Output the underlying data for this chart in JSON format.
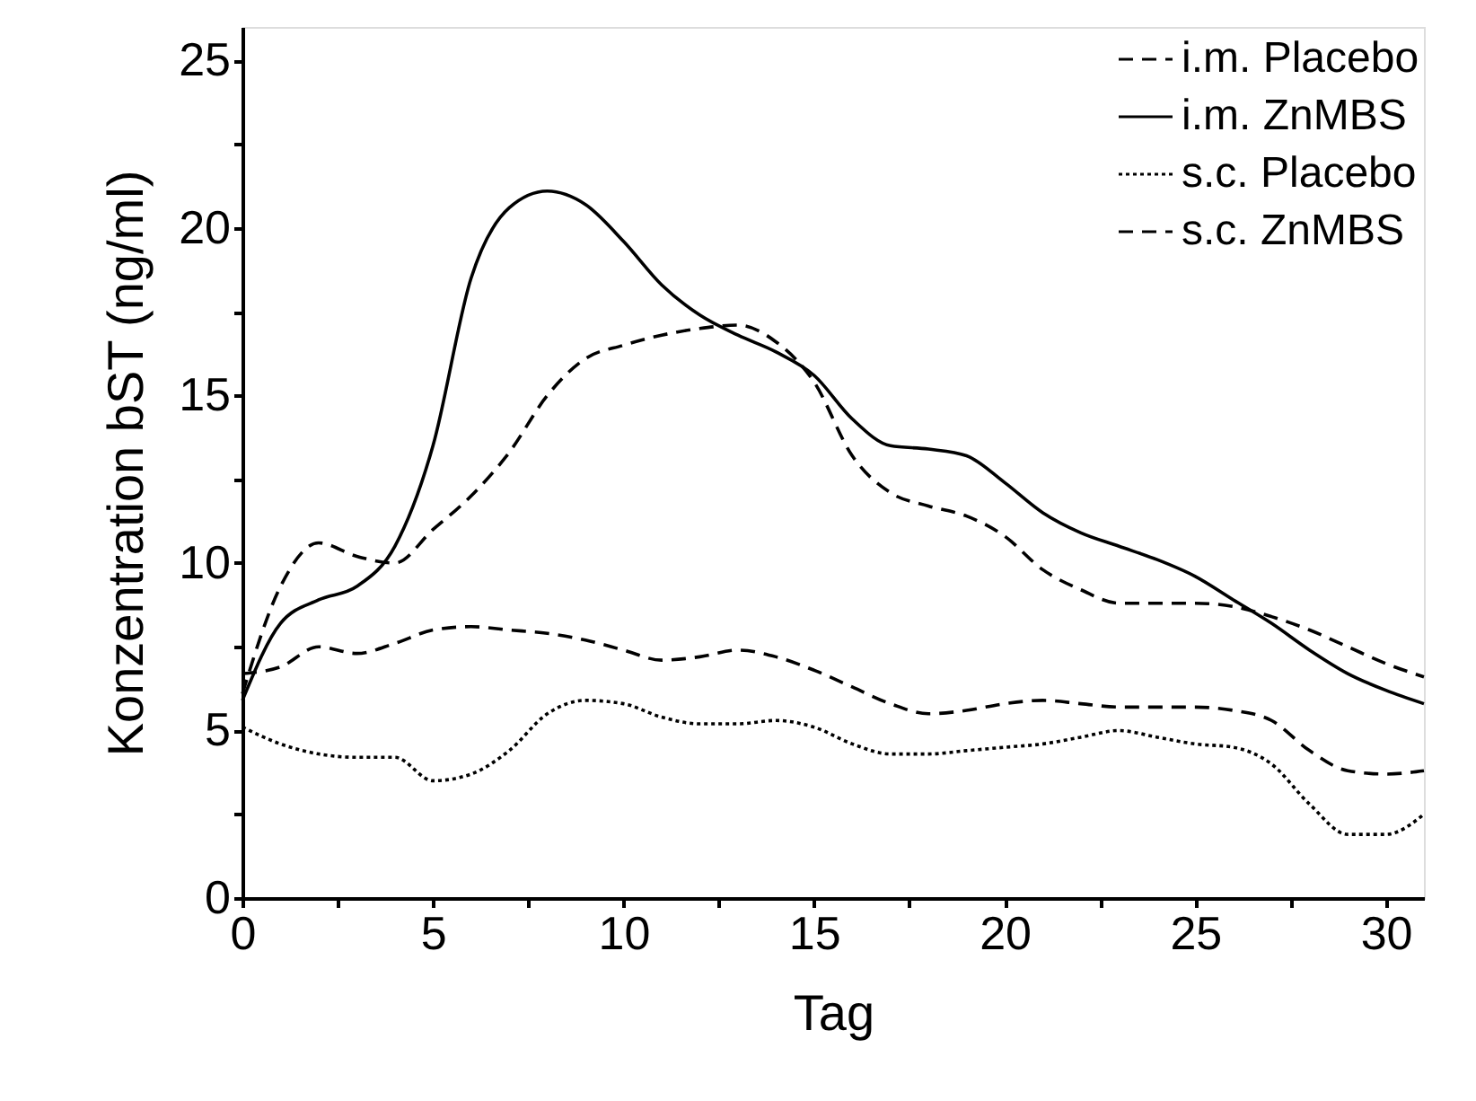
{
  "chart_data": {
    "type": "line",
    "xlabel": "Tag",
    "ylabel": "Konzentration bST (ng/ml)",
    "x": [
      0,
      1,
      2,
      3,
      4,
      5,
      6,
      7,
      8,
      9,
      10,
      11,
      12,
      13,
      14,
      15,
      16,
      17,
      18,
      19,
      20,
      21,
      22,
      23,
      24,
      25,
      26,
      27,
      28,
      29,
      30,
      31
    ],
    "series": [
      {
        "name": "i.m. Placebo",
        "color": "#000000",
        "line_style": "dashed",
        "values": [
          6.7,
          6.9,
          7.5,
          7.3,
          7.6,
          8.0,
          8.1,
          8.0,
          7.9,
          7.7,
          7.4,
          7.1,
          7.2,
          7.4,
          7.2,
          6.8,
          6.3,
          5.8,
          5.5,
          5.6,
          5.8,
          5.9,
          5.8,
          5.7,
          5.7,
          5.7,
          5.6,
          5.3,
          4.4,
          3.8,
          3.7,
          3.8
        ]
      },
      {
        "name": "i.m. ZnMBS",
        "color": "#000000",
        "line_style": "solid",
        "values": [
          5.9,
          8.2,
          8.9,
          9.3,
          10.5,
          13.5,
          18.5,
          20.6,
          21.1,
          20.7,
          19.6,
          18.3,
          17.4,
          16.8,
          16.3,
          15.6,
          14.3,
          13.5,
          13.4,
          13.2,
          12.4,
          11.5,
          10.9,
          10.5,
          10.1,
          9.6,
          8.9,
          8.2,
          7.4,
          6.7,
          6.2,
          5.8
        ]
      },
      {
        "name": "s.c. Placebo",
        "color": "#000000",
        "line_style": "dotted",
        "values": [
          5.1,
          4.6,
          4.3,
          4.2,
          4.2,
          3.5,
          3.7,
          4.4,
          5.5,
          5.9,
          5.8,
          5.4,
          5.2,
          5.2,
          5.3,
          5.1,
          4.6,
          4.3,
          4.3,
          4.4,
          4.5,
          4.6,
          4.8,
          5.0,
          4.8,
          4.6,
          4.5,
          4.0,
          2.8,
          1.9,
          1.9,
          2.5
        ]
      },
      {
        "name": "s.c. ZnMBS",
        "color": "#000000",
        "line_style": "dashed",
        "values": [
          6.1,
          9.3,
          10.6,
          10.2,
          10.0,
          11.0,
          12.0,
          13.3,
          15.0,
          16.1,
          16.5,
          16.8,
          17.0,
          17.1,
          16.6,
          15.4,
          13.2,
          12.1,
          11.7,
          11.4,
          10.8,
          9.8,
          9.2,
          8.8,
          8.8,
          8.8,
          8.7,
          8.4,
          8.0,
          7.5,
          7.0,
          6.6
        ]
      }
    ],
    "xlim": [
      0,
      31
    ],
    "xticks": [
      0,
      {
        "value": 2.5,
        "label": null
      },
      5,
      {
        "value": 7.5,
        "label": null
      },
      10,
      {
        "value": 12.5,
        "label": null
      },
      15,
      {
        "value": 17.5,
        "label": null
      },
      20,
      {
        "value": 22.5,
        "label": null
      },
      25,
      {
        "value": 27.5,
        "label": null
      },
      30
    ],
    "ylim": [
      0,
      26
    ],
    "yticks": [
      0,
      {
        "value": 2.5,
        "label": null
      },
      5,
      {
        "value": 7.5,
        "label": null
      },
      10,
      {
        "value": 12.5,
        "label": null
      },
      15,
      {
        "value": 17.5,
        "label": null
      },
      20,
      {
        "value": 22.5,
        "label": null
      },
      25
    ],
    "legend": "top right",
    "grid": false,
    "marker": "none"
  }
}
